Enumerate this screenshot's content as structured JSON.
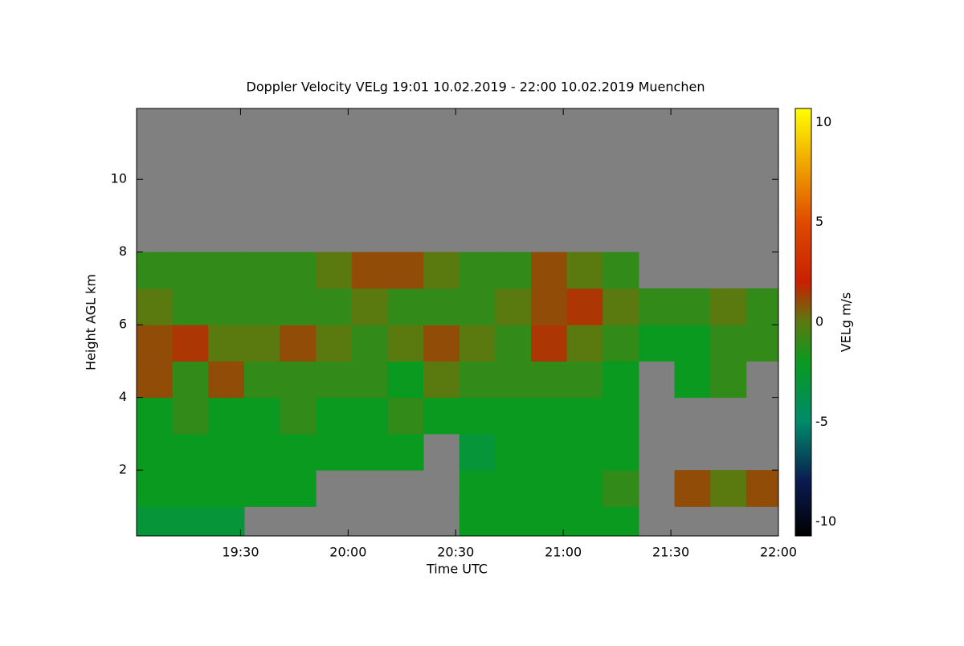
{
  "chart_data": {
    "type": "heatmap",
    "title": "Doppler Velocity VELg   19:01 10.02.2019 - 22:00 10.02.2019 Muenchen",
    "x_label": "Time UTC",
    "y_label": "Height AGL km",
    "colorbar_label": "VELg m/s",
    "missing_color": "#808080",
    "xlim": [
      1141,
      1320
    ],
    "xticks": [
      {
        "value": 1170,
        "label": "19:30"
      },
      {
        "value": 1200,
        "label": "20:00"
      },
      {
        "value": 1230,
        "label": "20:30"
      },
      {
        "value": 1260,
        "label": "21:00"
      },
      {
        "value": 1290,
        "label": "21:30"
      },
      {
        "value": 1320,
        "label": "22:00"
      }
    ],
    "ylim": [
      0.19,
      11.95
    ],
    "yticks": [
      2,
      4,
      6,
      8,
      10
    ],
    "zlim": [
      -10.7,
      10.7
    ],
    "zticks": [
      -10,
      -5,
      0,
      5,
      10
    ],
    "colormap": [
      {
        "value": -10.7,
        "color": "#000000"
      },
      {
        "value": -8,
        "color": "#0a1a50"
      },
      {
        "value": -5,
        "color": "#008a6a"
      },
      {
        "value": -2,
        "color": "#0a9a20"
      },
      {
        "value": 0,
        "color": "#5a7a10"
      },
      {
        "value": 2,
        "color": "#c82000"
      },
      {
        "value": 5,
        "color": "#e04a00"
      },
      {
        "value": 8,
        "color": "#f0a800"
      },
      {
        "value": 10.7,
        "color": "#ffff00"
      }
    ],
    "x": [
      1146,
      1156,
      1166,
      1176,
      1186,
      1196,
      1206,
      1216,
      1226,
      1236,
      1246,
      1256,
      1266,
      1276,
      1286,
      1296,
      1306,
      1316
    ],
    "y": [
      0.5,
      1.5,
      2.5,
      3.5,
      4.5,
      5.5,
      6.5,
      7.5,
      8.5,
      9.5,
      10.5,
      11.5
    ],
    "z": [
      [
        -3,
        -2,
        -2,
        -2,
        1,
        1,
        0,
        -1,
        null,
        null,
        null,
        null
      ],
      [
        -3,
        -2,
        -2,
        -1,
        -1,
        1.5,
        -1,
        -1,
        null,
        null,
        null,
        null
      ],
      [
        -3,
        -2,
        -2,
        -2,
        1,
        0,
        -1,
        -1,
        null,
        null,
        null,
        null
      ],
      [
        null,
        -2,
        -2,
        -2,
        -1,
        0,
        -1,
        -1,
        null,
        null,
        null,
        null
      ],
      [
        null,
        -2,
        -2,
        -1,
        -1,
        1,
        -1,
        -1,
        null,
        null,
        null,
        null
      ],
      [
        null,
        null,
        -2,
        -2,
        -1,
        0,
        -1,
        0,
        null,
        null,
        null,
        null
      ],
      [
        null,
        null,
        -2,
        -2,
        -1,
        -1,
        0,
        1,
        null,
        null,
        null,
        null
      ],
      [
        null,
        null,
        -2,
        -1,
        -2,
        0,
        -1,
        1,
        null,
        null,
        null,
        null
      ],
      [
        null,
        null,
        null,
        -2,
        0,
        1,
        -1,
        0,
        null,
        null,
        null,
        null
      ],
      [
        -2,
        -2,
        -3,
        -2,
        -1,
        0,
        -1,
        -1,
        null,
        null,
        null,
        null
      ],
      [
        -2,
        -2,
        -2,
        -2,
        -1,
        -1,
        0,
        -1,
        null,
        null,
        null,
        null
      ],
      [
        -2,
        -2,
        -2,
        -2,
        -1,
        1.5,
        1,
        1,
        null,
        null,
        null,
        null
      ],
      [
        -2,
        -2,
        -2,
        -2,
        -1,
        0,
        1.5,
        0,
        null,
        null,
        null,
        null
      ],
      [
        -2,
        -1,
        -2,
        -2,
        -2,
        -1,
        0,
        -1,
        null,
        null,
        null,
        null
      ],
      [
        null,
        null,
        null,
        null,
        null,
        -2,
        -1,
        null,
        null,
        null,
        null,
        null
      ],
      [
        null,
        1,
        null,
        null,
        -2,
        -2,
        -1,
        null,
        null,
        null,
        null,
        null
      ],
      [
        null,
        0,
        null,
        null,
        -1,
        -1,
        0,
        null,
        null,
        null,
        null,
        null
      ],
      [
        null,
        1,
        null,
        null,
        null,
        -1,
        -1,
        null,
        null,
        null,
        null,
        null
      ]
    ]
  }
}
